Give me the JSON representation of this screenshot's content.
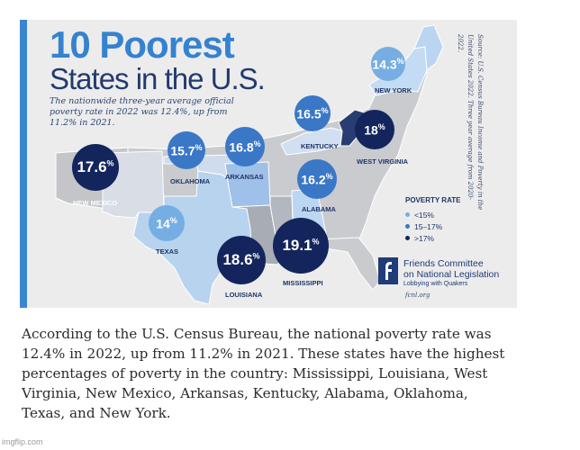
{
  "title_line1": "10 Poorest",
  "title_line2": "States in the U.S.",
  "subtitle": "The nationwide three-year average official poverty rate in 2022 was 12.4%, up from 11.2% in 2021.",
  "source_note": "Source: U.S. Census Bureau Income and Poverty in the United States 2022. Three year average from 2020-2022.",
  "pct_symbol": "%",
  "states": [
    {
      "name": "NEW YORK",
      "rate": "14.3",
      "tier": "light"
    },
    {
      "name": "KENTUCKY",
      "rate": "16.5",
      "tier": "mid"
    },
    {
      "name": "WEST VIRGINIA",
      "rate": "18",
      "tier": "dark"
    },
    {
      "name": "OKLAHOMA",
      "rate": "15.7",
      "tier": "mid"
    },
    {
      "name": "ARKANSAS",
      "rate": "16.8",
      "tier": "mid"
    },
    {
      "name": "NEW MEXICO",
      "rate": "17.6",
      "tier": "dark"
    },
    {
      "name": "ALABAMA",
      "rate": "16.2",
      "tier": "mid"
    },
    {
      "name": "TEXAS",
      "rate": "14",
      "tier": "light"
    },
    {
      "name": "LOUISIANA",
      "rate": "18.6",
      "tier": "dark"
    },
    {
      "name": "MISSISSIPPI",
      "rate": "19.1",
      "tier": "dark"
    }
  ],
  "legend": {
    "title": "POVERTY RATE",
    "items": [
      {
        "label": "<15%",
        "color": "#76aee3"
      },
      {
        "label": "15–17%",
        "color": "#3a77c7"
      },
      {
        "label": ">17%",
        "color": "#13255c"
      }
    ]
  },
  "logo": {
    "line1": "Friends Committee",
    "line2": "on National Legislation",
    "tagline": "Lobbying with Quakers"
  },
  "website": "fcnl.org",
  "caption": "According to the U.S. Census Bureau, the national poverty rate was 12.4% in 2022, up from 11.2% in 2021. These states have the highest percentages of poverty in the country: Mississippi, Louisiana, West Virginia, New Mexico, Arkansas, Kentucky, Alabama, Oklahoma, Texas, and New York.",
  "watermark": "imgflip.com",
  "colors": {
    "accent": "#3b86d1",
    "title_light": "#3582cf",
    "title_dark": "#233a6f",
    "tier_light": "#76aee3",
    "tier_mid": "#3a77c7",
    "tier_dark": "#13255c"
  }
}
